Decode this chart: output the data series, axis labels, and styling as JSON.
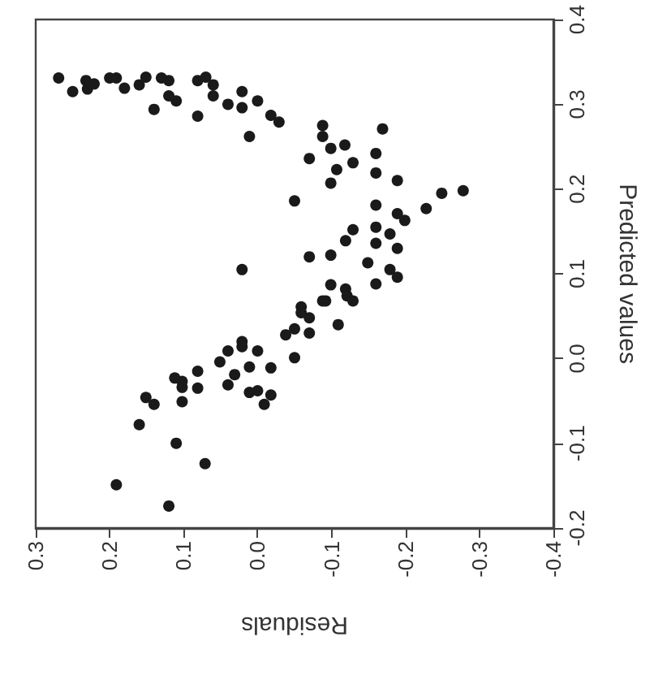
{
  "chart_data": {
    "type": "scatter",
    "xlabel": "Residuals",
    "ylabel": "Predicted values",
    "color": "#1a1a1a",
    "marker": "circle",
    "grid": false,
    "xlim": [
      0.3,
      -0.4
    ],
    "xticks": [
      0.3,
      0.2,
      0.1,
      {
        "value": 0,
        "label": "0.0"
      },
      -0.1,
      -0.2,
      -0.3,
      -0.4
    ],
    "ylim": [
      -0.2,
      0.4
    ],
    "yticks": [
      -0.2,
      -0.1,
      {
        "value": 0,
        "label": "0.0"
      },
      0.1,
      0.2,
      0.3,
      0.4
    ],
    "x": [
      0.269,
      0.25,
      0.232,
      0.23,
      0.221,
      0.2,
      0.191,
      0.18,
      0.16,
      0.151,
      0.14,
      0.13,
      0.12,
      0.12,
      0.11,
      0.081,
      0.07,
      0.06,
      0.06,
      0.081,
      0.04,
      0.021,
      0.021,
      0,
      0.011,
      -0.018,
      -0.029,
      -0.088,
      -0.088,
      -0.099,
      -0.07,
      -0.107,
      -0.099,
      -0.05,
      -0.07,
      -0.099,
      0.021,
      -0.099,
      -0.118,
      -0.129,
      -0.169,
      -0.16,
      -0.16,
      -0.189,
      -0.278,
      -0.249,
      -0.228,
      -0.16,
      -0.189,
      -0.199,
      -0.16,
      -0.129,
      -0.119,
      -0.16,
      -0.179,
      -0.189,
      -0.149,
      -0.179,
      -0.189,
      -0.16,
      -0.119,
      -0.092,
      -0.121,
      -0.129,
      -0.109,
      -0.088,
      -0.059,
      -0.059,
      -0.07,
      -0.05,
      -0.038,
      -0.07,
      -0.05,
      -0.018,
      0,
      0.021,
      0.021,
      0.04,
      0.051,
      0.011,
      0.031,
      0.04,
      0.011,
      0,
      -0.018,
      -0.009,
      0.081,
      0.081,
      0.112,
      0.102,
      0.102,
      0.102,
      0.151,
      0.14,
      0.16,
      0.11,
      0.071,
      0.191,
      0.12
    ],
    "values": [
      0.331,
      0.315,
      0.328,
      0.318,
      0.324,
      0.331,
      0.331,
      0.319,
      0.323,
      0.332,
      0.294,
      0.331,
      0.328,
      0.31,
      0.304,
      0.328,
      0.332,
      0.323,
      0.31,
      0.286,
      0.3,
      0.315,
      0.296,
      0.304,
      0.262,
      0.287,
      0.279,
      0.275,
      0.262,
      0.248,
      0.236,
      0.223,
      0.207,
      0.186,
      0.12,
      0.122,
      0.105,
      0.087,
      0.252,
      0.231,
      0.271,
      0.242,
      0.219,
      0.21,
      0.198,
      0.195,
      0.177,
      0.181,
      0.171,
      0.163,
      0.155,
      0.152,
      0.139,
      0.136,
      0.147,
      0.13,
      0.113,
      0.105,
      0.096,
      0.088,
      0.082,
      0.068,
      0.074,
      0.068,
      0.04,
      0.068,
      0.061,
      0.054,
      0.048,
      0.035,
      0.028,
      0.03,
      0.001,
      -0.011,
      0.009,
      0.02,
      0.014,
      0.009,
      -0.004,
      -0.01,
      -0.019,
      -0.031,
      -0.04,
      -0.038,
      -0.043,
      -0.054,
      -0.015,
      -0.035,
      -0.023,
      -0.027,
      -0.034,
      -0.051,
      -0.046,
      -0.054,
      -0.078,
      -0.1,
      -0.124,
      -0.149,
      -0.174
    ]
  }
}
